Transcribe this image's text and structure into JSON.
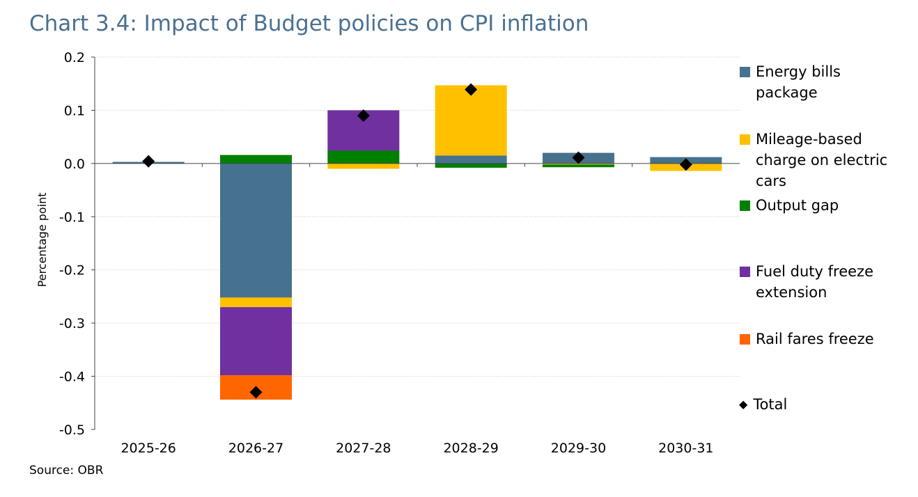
{
  "chart_data": {
    "type": "bar",
    "stacked": true,
    "title": "Chart 3.4: Impact of Budget policies on CPI inflation",
    "ylabel": "Percentage point",
    "xlabel": "",
    "ylim": [
      -0.5,
      0.2
    ],
    "yticks": [
      "0.2",
      "0.1",
      "0.0",
      "-0.1",
      "-0.2",
      "-0.3",
      "-0.4",
      "-0.5"
    ],
    "ytick_values": [
      0.2,
      0.1,
      0,
      -0.1,
      -0.2,
      -0.3,
      -0.4,
      -0.5
    ],
    "categories": [
      "2025-26",
      "2026-27",
      "2027-28",
      "2028-29",
      "2029-30",
      "2030-31"
    ],
    "series": [
      {
        "name": "Energy bills package",
        "color": "#46728f",
        "values": [
          0.003,
          -0.252,
          0,
          0.015,
          0.02,
          0.012
        ]
      },
      {
        "name": "Mileage-based charge on electric cars",
        "color": "#ffc000",
        "values": [
          0,
          -0.018,
          -0.01,
          0.132,
          -0.002,
          -0.014
        ]
      },
      {
        "name": "Output gap",
        "color": "#008000",
        "values": [
          0,
          0.016,
          0.024,
          -0.008,
          -0.005,
          0
        ]
      },
      {
        "name": "Fuel duty freeze extension",
        "color": "#7030a0",
        "values": [
          0,
          -0.128,
          0.076,
          0,
          0,
          0
        ]
      },
      {
        "name": "Rail fares freeze",
        "color": "#ff6600",
        "values": [
          0,
          -0.046,
          0,
          0,
          0,
          0
        ]
      }
    ],
    "total": {
      "name": "Total",
      "values": [
        0.004,
        -0.43,
        0.09,
        0.139,
        0.011,
        -0.002
      ]
    },
    "grid": true,
    "legend": "right"
  },
  "source": "Source: OBR"
}
